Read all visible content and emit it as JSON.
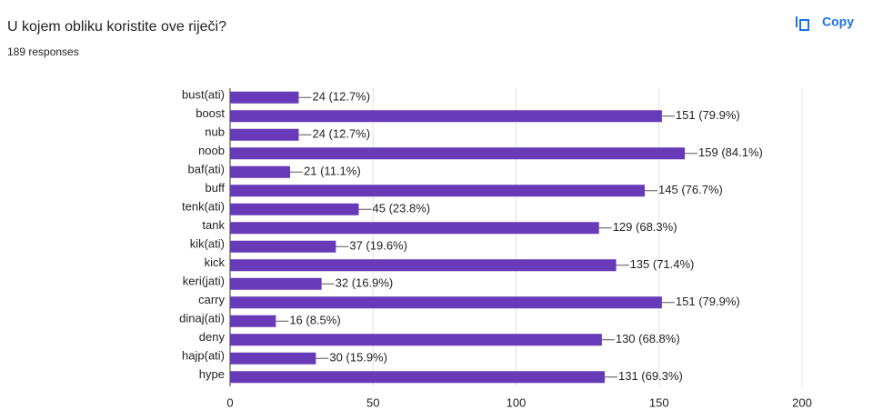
{
  "header": {
    "title": "U kojem obliku koristite ove riječi?",
    "subtitle": "189 responses",
    "copy_button": "Copy"
  },
  "chart_data": {
    "type": "bar",
    "orientation": "horizontal",
    "color": "#673ab7",
    "grid": true,
    "categories": [
      "bust(ati)",
      "boost",
      "nub",
      "noob",
      "baf(ati)",
      "buff",
      "tenk(ati)",
      "tank",
      "kik(ati)",
      "kick",
      "keri(jati)",
      "carry",
      "dinaj(ati)",
      "deny",
      "hajp(ati)",
      "hype"
    ],
    "values": [
      24,
      151,
      24,
      159,
      21,
      145,
      45,
      129,
      37,
      135,
      32,
      151,
      16,
      130,
      30,
      131
    ],
    "value_labels": [
      "24 (12.7%)",
      "151 (79.9%)",
      "24 (12.7%)",
      "159 (84.1%)",
      "21 (11.1%)",
      "145 (76.7%)",
      "45 (23.8%)",
      "129 (68.3%)",
      "37 (19.6%)",
      "135 (71.4%)",
      "32 (16.9%)",
      "151 (79.9%)",
      "16 (8.5%)",
      "130 (68.8%)",
      "30 (15.9%)",
      "131 (69.3%)"
    ],
    "xlim": [
      0,
      200
    ],
    "xticks": [
      0,
      50,
      100,
      150,
      200
    ]
  }
}
